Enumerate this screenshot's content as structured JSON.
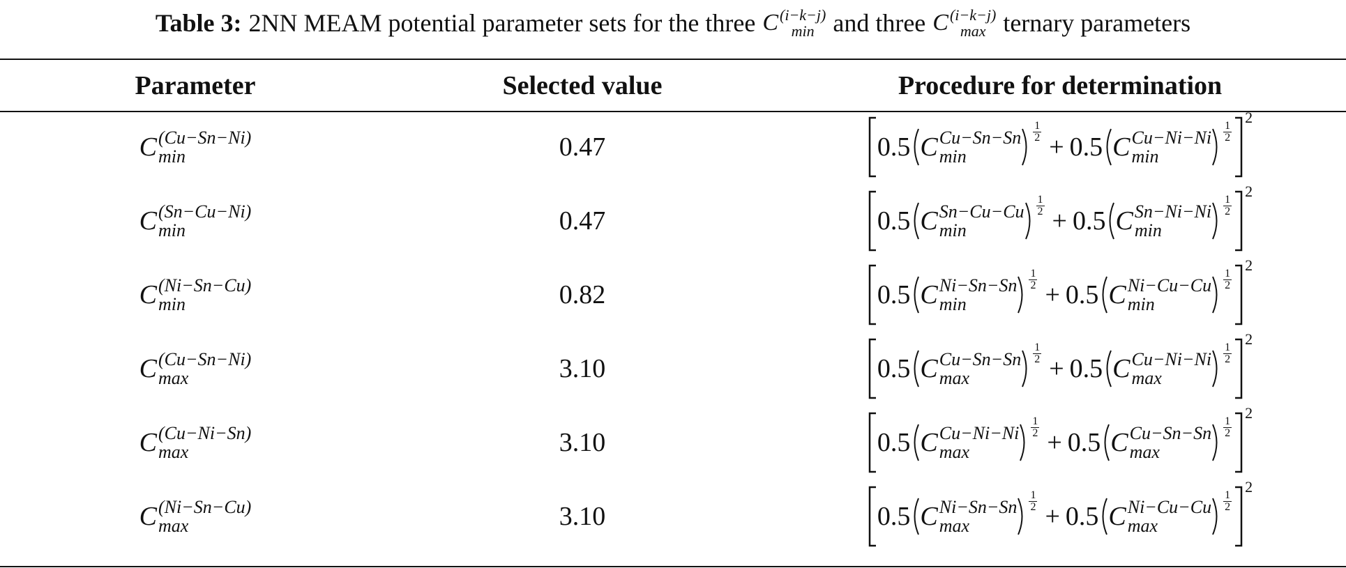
{
  "caption": {
    "label": "Table 3:",
    "text_before": "2NN MEAM potential parameter sets for the three",
    "sym_min": {
      "base": "C",
      "sub": "min",
      "sup": "(i−k−j)"
    },
    "middle": "and three",
    "sym_max": {
      "base": "C",
      "sub": "max",
      "sup": "(i−k−j)"
    },
    "text_after": "ternary parameters"
  },
  "table": {
    "headers": [
      "Parameter",
      "Selected value",
      "Procedure for determination"
    ],
    "rows": [
      {
        "parameter": {
          "base": "C",
          "sub": "min",
          "sup": "(Cu−Sn−Ni)"
        },
        "value": "0.47",
        "procedure": {
          "coef1": "0.5",
          "term1": {
            "base": "C",
            "sub": "min",
            "sup": "Cu−Sn−Sn"
          },
          "exp1": {
            "num": "1",
            "den": "2"
          },
          "operator": "+",
          "coef2": "0.5",
          "term2": {
            "base": "C",
            "sub": "min",
            "sup": "Cu−Ni−Ni"
          },
          "exp2": {
            "num": "1",
            "den": "2"
          },
          "outer_exp": "2"
        }
      },
      {
        "parameter": {
          "base": "C",
          "sub": "min",
          "sup": "(Sn−Cu−Ni)"
        },
        "value": "0.47",
        "procedure": {
          "coef1": "0.5",
          "term1": {
            "base": "C",
            "sub": "min",
            "sup": "Sn−Cu−Cu"
          },
          "exp1": {
            "num": "1",
            "den": "2"
          },
          "operator": "+",
          "coef2": "0.5",
          "term2": {
            "base": "C",
            "sub": "min",
            "sup": "Sn−Ni−Ni"
          },
          "exp2": {
            "num": "1",
            "den": "2"
          },
          "outer_exp": "2"
        }
      },
      {
        "parameter": {
          "base": "C",
          "sub": "min",
          "sup": "(Ni−Sn−Cu)"
        },
        "value": "0.82",
        "procedure": {
          "coef1": "0.5",
          "term1": {
            "base": "C",
            "sub": "min",
            "sup": "Ni−Sn−Sn"
          },
          "exp1": {
            "num": "1",
            "den": "2"
          },
          "operator": "+",
          "coef2": "0.5",
          "term2": {
            "base": "C",
            "sub": "min",
            "sup": "Ni−Cu−Cu"
          },
          "exp2": {
            "num": "1",
            "den": "2"
          },
          "outer_exp": "2"
        }
      },
      {
        "parameter": {
          "base": "C",
          "sub": "max",
          "sup": "(Cu−Sn−Ni)"
        },
        "value": "3.10",
        "procedure": {
          "coef1": "0.5",
          "term1": {
            "base": "C",
            "sub": "max",
            "sup": "Cu−Sn−Sn"
          },
          "exp1": {
            "num": "1",
            "den": "2"
          },
          "operator": "+",
          "coef2": "0.5",
          "term2": {
            "base": "C",
            "sub": "max",
            "sup": "Cu−Ni−Ni"
          },
          "exp2": {
            "num": "1",
            "den": "2"
          },
          "outer_exp": "2"
        }
      },
      {
        "parameter": {
          "base": "C",
          "sub": "max",
          "sup": "(Cu−Ni−Sn)"
        },
        "value": "3.10",
        "procedure": {
          "coef1": "0.5",
          "term1": {
            "base": "C",
            "sub": "max",
            "sup": "Cu−Ni−Ni"
          },
          "exp1": {
            "num": "1",
            "den": "2"
          },
          "operator": "+",
          "coef2": "0.5",
          "term2": {
            "base": "C",
            "sub": "max",
            "sup": "Cu−Sn−Sn"
          },
          "exp2": {
            "num": "1",
            "den": "2"
          },
          "outer_exp": "2"
        }
      },
      {
        "parameter": {
          "base": "C",
          "sub": "max",
          "sup": "(Ni−Sn−Cu)"
        },
        "value": "3.10",
        "procedure": {
          "coef1": "0.5",
          "term1": {
            "base": "C",
            "sub": "max",
            "sup": "Ni−Sn−Sn"
          },
          "exp1": {
            "num": "1",
            "den": "2"
          },
          "operator": "+",
          "coef2": "0.5",
          "term2": {
            "base": "C",
            "sub": "max",
            "sup": "Ni−Cu−Cu"
          },
          "exp2": {
            "num": "1",
            "den": "2"
          },
          "outer_exp": "2"
        }
      }
    ]
  }
}
